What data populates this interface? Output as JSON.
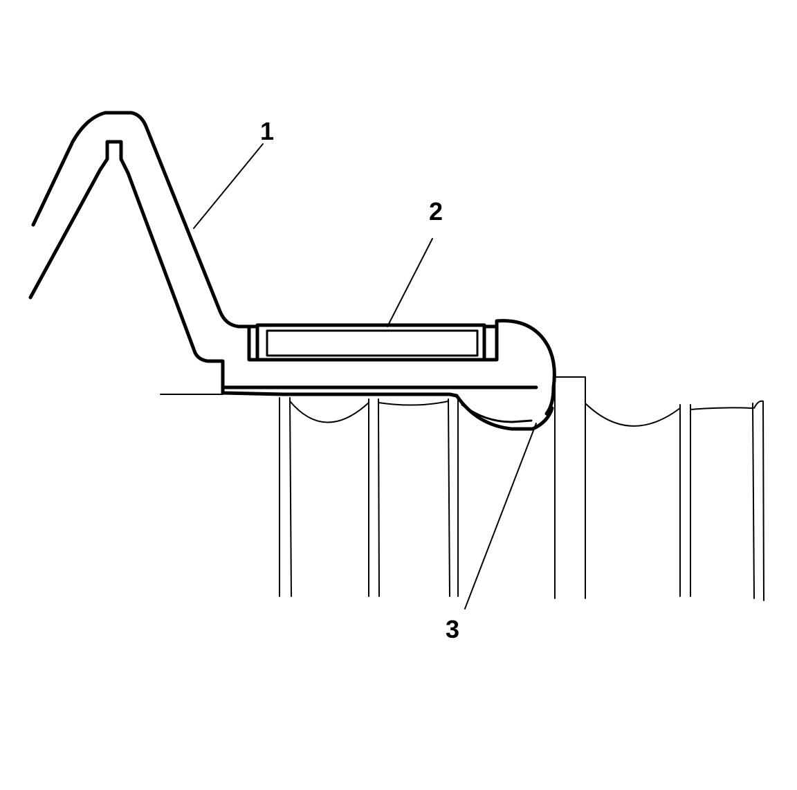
{
  "callouts": [
    {
      "id": "1",
      "label": "1"
    },
    {
      "id": "2",
      "label": "2"
    },
    {
      "id": "3",
      "label": "3"
    }
  ],
  "colors": {
    "line": "#000000",
    "background": "#ffffff"
  }
}
